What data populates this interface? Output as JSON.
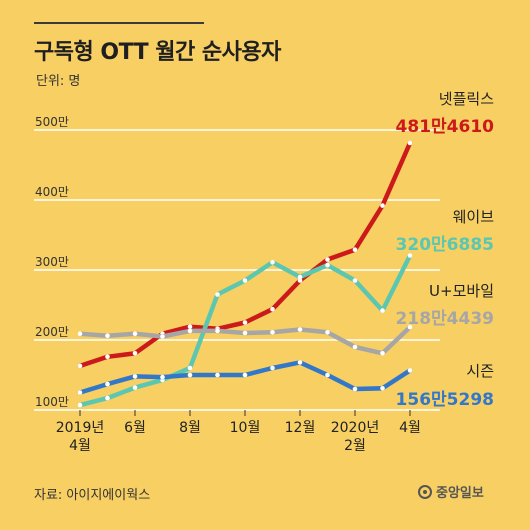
{
  "title": "구독형 OTT 월간 순사용자",
  "unit_label": "단위: 명",
  "source": "자료: 아이지에이웍스",
  "logo": "중앙일보",
  "chart_data": {
    "type": "line",
    "y_tick_labels": [
      "100만",
      "200만",
      "300만",
      "400만",
      "500만"
    ],
    "y_ticks": [
      100,
      200,
      300,
      400,
      500
    ],
    "ylim": [
      100,
      500
    ],
    "x_tick_labels": [
      "2019년 4월",
      "6월",
      "8월",
      "10월",
      "12월",
      "2020년 2월",
      "4월"
    ],
    "x": [
      "2019-04",
      "2019-05",
      "2019-06",
      "2019-07",
      "2019-08",
      "2019-09",
      "2019-10",
      "2019-11",
      "2019-12",
      "2020-01",
      "2020-02",
      "2020-03",
      "2020-04"
    ],
    "grid": true,
    "series": [
      {
        "name": "넷플릭스",
        "end_label": "481만4610",
        "color": "#cc1a1a",
        "values": [
          163,
          176,
          181,
          209,
          219,
          216,
          225,
          244,
          285,
          315,
          329,
          392,
          481.461
        ]
      },
      {
        "name": "웨이브",
        "end_label": "320만6885",
        "color": "#5cc7b0",
        "values": [
          107,
          117,
          132,
          143,
          160,
          265,
          285,
          311,
          290,
          307,
          285,
          242,
          320.6885
        ]
      },
      {
        "name": "U+모바일",
        "end_label": "218만4439",
        "color": "#a6a6a6",
        "values": [
          209,
          206,
          209,
          205,
          213,
          213,
          210,
          211,
          215,
          211,
          190,
          181,
          218.4439
        ]
      },
      {
        "name": "시즌",
        "end_label": "156만5298",
        "color": "#3378c8",
        "values": [
          125,
          137,
          148,
          147,
          150,
          150,
          150,
          160,
          168,
          150,
          130,
          131,
          156.5298
        ]
      }
    ]
  }
}
